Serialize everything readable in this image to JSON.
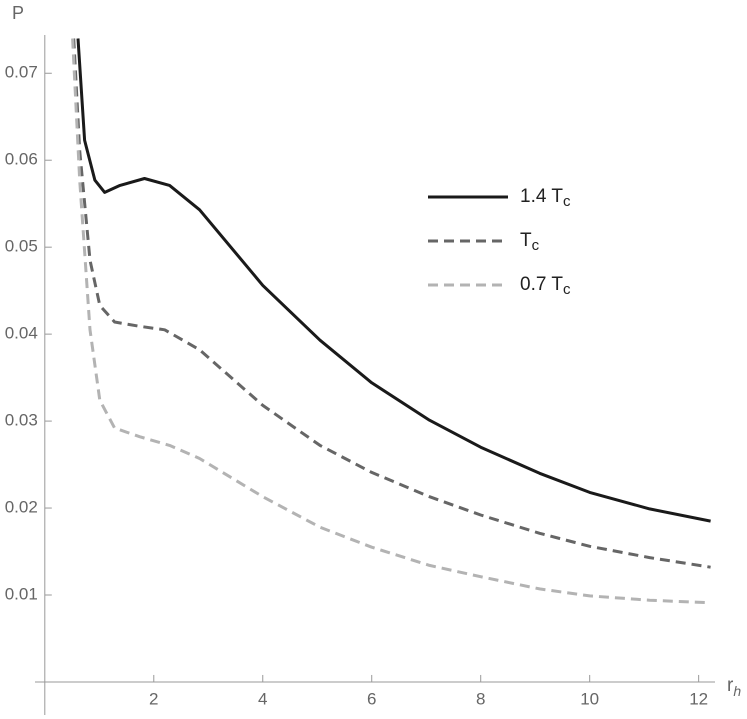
{
  "chart_data": {
    "type": "line",
    "y_label": "P",
    "x_label": {
      "main": "r",
      "subscript": "h"
    },
    "xlim": [
      -0.18,
      12.3
    ],
    "ylim": [
      -0.0038,
      0.0744
    ],
    "xticks": [
      2,
      4,
      6,
      8,
      10,
      12
    ],
    "yticks": [
      0.01,
      0.02,
      0.03,
      0.04,
      0.05,
      0.06,
      0.07
    ],
    "series": [
      {
        "name": "1.4 T",
        "subscript": "c",
        "color": "#1a1a1a",
        "dashed": false,
        "x": [
          0.61,
          0.73,
          0.92,
          1.1,
          1.38,
          1.83,
          2.29,
          2.84,
          4.0,
          5.05,
          6.0,
          7.06,
          8.0,
          9.08,
          10.0,
          11.1,
          12.22
        ],
        "values": [
          0.074,
          0.0623,
          0.0577,
          0.0563,
          0.0571,
          0.0579,
          0.0571,
          0.0543,
          0.0456,
          0.0393,
          0.0344,
          0.0301,
          0.027,
          0.024,
          0.0218,
          0.0199,
          0.0185
        ]
      },
      {
        "name": "T",
        "subscript": "c",
        "color": "#666666",
        "dashed": true,
        "x": [
          0.53,
          0.64,
          0.83,
          1.01,
          1.28,
          1.74,
          2.2,
          2.84,
          4.0,
          5.05,
          6.0,
          7.06,
          8.0,
          9.08,
          10.0,
          11.1,
          12.22
        ],
        "values": [
          0.074,
          0.0611,
          0.0485,
          0.0433,
          0.0414,
          0.0409,
          0.0405,
          0.0382,
          0.0318,
          0.0272,
          0.0241,
          0.0213,
          0.0192,
          0.0171,
          0.0156,
          0.0143,
          0.0132
        ]
      },
      {
        "name": "0.7 T",
        "subscript": "c",
        "color": "#b3b3b3",
        "dashed": true,
        "x": [
          0.51,
          0.64,
          0.83,
          1.01,
          1.28,
          1.74,
          2.29,
          2.84,
          4.0,
          5.05,
          6.0,
          7.06,
          8.0,
          9.08,
          10.0,
          11.1,
          12.22
        ],
        "values": [
          0.074,
          0.0577,
          0.0405,
          0.0324,
          0.0292,
          0.0282,
          0.0272,
          0.0257,
          0.0213,
          0.0178,
          0.0155,
          0.0134,
          0.0121,
          0.0107,
          0.0099,
          0.0094,
          0.0091
        ]
      }
    ]
  }
}
